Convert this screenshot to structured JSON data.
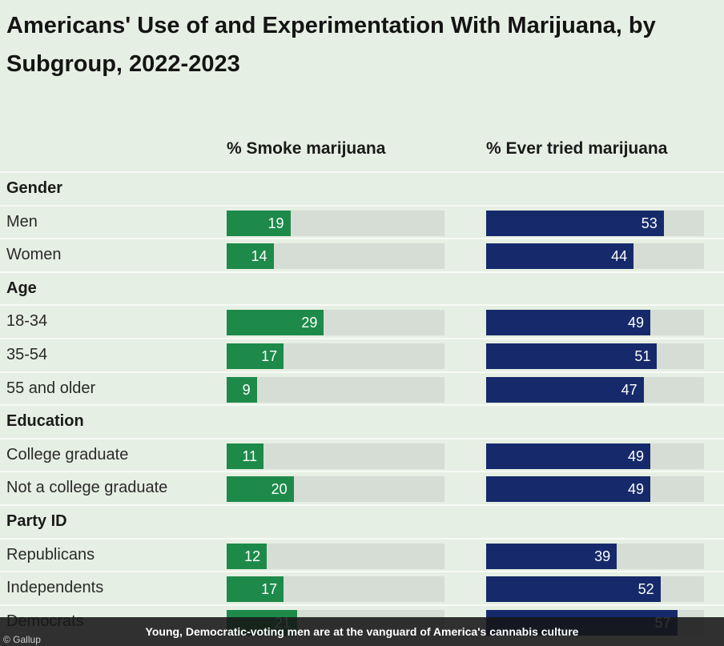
{
  "title": "Americans' Use of and Experimentation With Marijuana, by Subgroup, 2022-2023",
  "caption": "Young, Democratic-voting men are at the vanguard of America's cannabis culture",
  "source": "© Gallup",
  "colors": {
    "smoke": "#1d8a4a",
    "tried": "#162a6b",
    "track": "#d6ddd4"
  },
  "chart_data": {
    "type": "bar",
    "title": "Americans' Use of and Experimentation With Marijuana, by Subgroup, 2022-2023",
    "series": [
      {
        "name": "% Smoke marijuana",
        "values": [
          19,
          14,
          29,
          17,
          9,
          11,
          20,
          12,
          17,
          21
        ]
      },
      {
        "name": "% Ever tried marijuana",
        "values": [
          53,
          44,
          49,
          51,
          47,
          49,
          49,
          39,
          52,
          57
        ]
      }
    ],
    "categories": [
      "Men",
      "Women",
      "18-34",
      "35-54",
      "55 and older",
      "College graduate",
      "Not a college graduate",
      "Republicans",
      "Independents",
      "Democrats"
    ],
    "groups": [
      {
        "name": "Gender",
        "rows": [
          {
            "label": "Men",
            "smoke": 19,
            "tried": 53
          },
          {
            "label": "Women",
            "smoke": 14,
            "tried": 44
          }
        ]
      },
      {
        "name": "Age",
        "rows": [
          {
            "label": "18-34",
            "smoke": 29,
            "tried": 49
          },
          {
            "label": "35-54",
            "smoke": 17,
            "tried": 51
          },
          {
            "label": "55 and older",
            "smoke": 9,
            "tried": 47
          }
        ]
      },
      {
        "name": "Education",
        "rows": [
          {
            "label": "College graduate",
            "smoke": 11,
            "tried": 49
          },
          {
            "label": "Not a college graduate",
            "smoke": 20,
            "tried": 49
          }
        ]
      },
      {
        "name": "Party ID",
        "rows": [
          {
            "label": "Republicans",
            "smoke": 12,
            "tried": 39
          },
          {
            "label": "Independents",
            "smoke": 17,
            "tried": 52
          },
          {
            "label": "Democrats",
            "smoke": 21,
            "tried": 57
          }
        ]
      }
    ],
    "xlim": [
      0,
      65
    ],
    "legend": "column headers",
    "grid": false
  }
}
